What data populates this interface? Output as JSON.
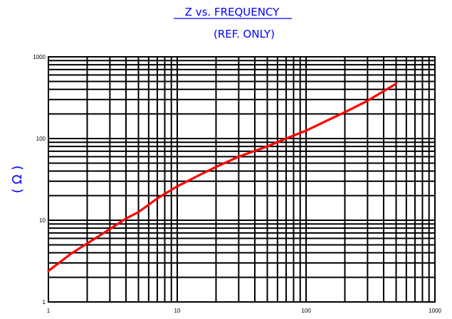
{
  "chart_data": {
    "type": "line",
    "title": "Z vs. FREQUENCY",
    "subtitle": "(REF. ONLY)",
    "xlabel": "",
    "ylabel": "( Ω )",
    "xscale": "log",
    "yscale": "log",
    "xlim": [
      1,
      1000
    ],
    "ylim": [
      1,
      1000
    ],
    "x_ticks": [
      "1",
      "10",
      "100",
      "1000"
    ],
    "y_ticks": [
      "1",
      "10",
      "100",
      "1000"
    ],
    "grid": true,
    "colors": {
      "title": "#0000ff",
      "ylabel": "#0000ff",
      "line": "#ff0000",
      "grid": "#000000"
    },
    "series": [
      {
        "color": "#ff0000",
        "x": [
          1,
          1.5,
          2,
          3,
          4,
          5,
          7,
          10,
          15,
          20,
          30,
          50,
          70,
          100,
          150,
          200,
          300,
          400,
          500
        ],
        "y": [
          2.4,
          3.9,
          5.2,
          7.8,
          10.5,
          12.6,
          18.5,
          26,
          36,
          45,
          60,
          80,
          100,
          125,
          170,
          210,
          290,
          380,
          470
        ]
      }
    ]
  }
}
